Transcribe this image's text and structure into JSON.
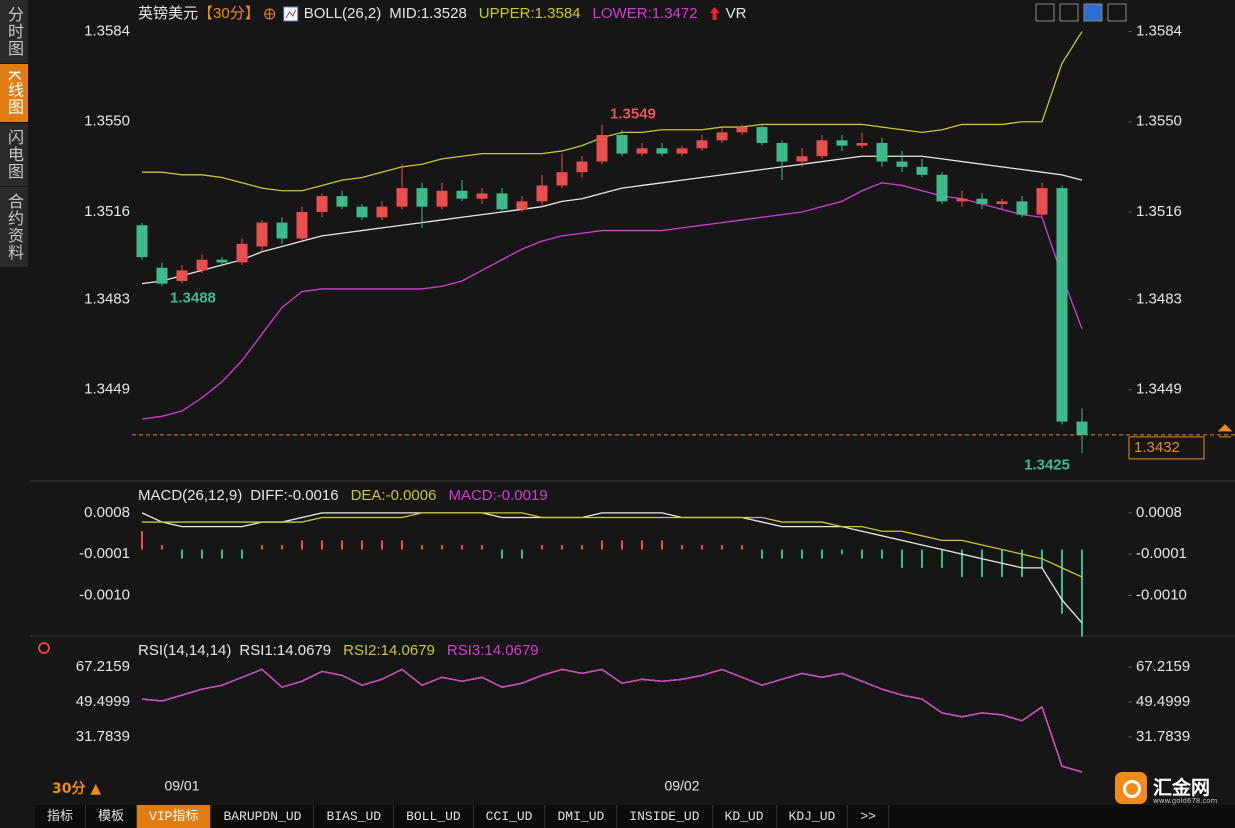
{
  "chart_data": [
    {
      "type": "candlestick",
      "title": "英镑美元",
      "period": "【30分】",
      "indicator": "BOLL(26,2)",
      "extra_indicator": "VR",
      "categories": [
        null,
        null,
        "09/01",
        null,
        null,
        null,
        null,
        null,
        null,
        null,
        null,
        null,
        null,
        null,
        null,
        null,
        null,
        null,
        null,
        null,
        null,
        null,
        null,
        null,
        null,
        null,
        null,
        "09/02",
        null,
        null,
        null,
        null,
        null,
        null,
        null,
        null,
        null,
        null,
        null,
        null,
        null,
        null,
        null,
        null,
        null,
        null,
        null,
        null
      ],
      "open": [
        1.3511,
        1.3495,
        1.349,
        1.3494,
        1.3498,
        1.3497,
        1.3503,
        1.3512,
        1.3506,
        1.3516,
        1.3522,
        1.3518,
        1.3514,
        1.3518,
        1.3525,
        1.3518,
        1.3524,
        1.3521,
        1.3523,
        1.3517,
        1.352,
        1.3526,
        1.3531,
        1.3535,
        1.3545,
        1.3538,
        1.354,
        1.3538,
        1.354,
        1.3543,
        1.3546,
        1.3548,
        1.3542,
        1.3535,
        1.3537,
        1.3543,
        1.3541,
        1.3542,
        1.3535,
        1.3533,
        1.353,
        1.352,
        1.3521,
        1.3519,
        1.352,
        1.3515,
        1.3525,
        1.3437
      ],
      "high": [
        1.3512,
        1.3497,
        1.3496,
        1.35,
        1.3499,
        1.3506,
        1.3513,
        1.3514,
        1.3518,
        1.3523,
        1.3524,
        1.3519,
        1.352,
        1.3534,
        1.3527,
        1.3527,
        1.3528,
        1.3525,
        1.3525,
        1.3522,
        1.353,
        1.3538,
        1.3537,
        1.3549,
        1.3547,
        1.3542,
        1.3542,
        1.3541,
        1.3545,
        1.3548,
        1.3549,
        1.3549,
        1.3543,
        1.354,
        1.3545,
        1.3545,
        1.3546,
        1.3544,
        1.3539,
        1.3536,
        1.3531,
        1.3524,
        1.3523,
        1.3521,
        1.3522,
        1.3527,
        1.3526,
        1.3442
      ],
      "low": [
        1.3498,
        1.3488,
        1.3489,
        1.3493,
        1.3496,
        1.3496,
        1.3501,
        1.3504,
        1.3505,
        1.3514,
        1.3517,
        1.3513,
        1.3513,
        1.3517,
        1.351,
        1.3517,
        1.352,
        1.3519,
        1.3516,
        1.3516,
        1.3518,
        1.3525,
        1.3529,
        1.3534,
        1.3537,
        1.3537,
        1.3537,
        1.3537,
        1.3539,
        1.3542,
        1.3545,
        1.3541,
        1.3528,
        1.3533,
        1.3536,
        1.3539,
        1.354,
        1.3533,
        1.3531,
        1.3529,
        1.3519,
        1.3518,
        1.3517,
        1.3517,
        1.3514,
        1.3514,
        1.3436,
        1.3425
      ],
      "close": [
        1.3499,
        1.3489,
        1.3494,
        1.3498,
        1.3497,
        1.3504,
        1.3512,
        1.3506,
        1.3516,
        1.3522,
        1.3518,
        1.3514,
        1.3518,
        1.3525,
        1.3518,
        1.3524,
        1.3521,
        1.3523,
        1.3517,
        1.352,
        1.3526,
        1.3531,
        1.3535,
        1.3545,
        1.3538,
        1.354,
        1.3538,
        1.354,
        1.3543,
        1.3546,
        1.3548,
        1.3542,
        1.3535,
        1.3537,
        1.3543,
        1.3541,
        1.3542,
        1.3535,
        1.3533,
        1.353,
        1.352,
        1.3521,
        1.3519,
        1.352,
        1.3515,
        1.3525,
        1.3437,
        1.3432
      ],
      "up_color": "#ea4d4d",
      "down_color": "#3dbb8c",
      "series": [
        {
          "name": "MID:1.3528",
          "color": "#e8e8e8",
          "values": [
            1.3489,
            1.349,
            1.3492,
            1.3494,
            1.3496,
            1.3498,
            1.3501,
            1.3503,
            1.3505,
            1.3507,
            1.3508,
            1.3509,
            1.351,
            1.3511,
            1.3512,
            1.3513,
            1.3514,
            1.3515,
            1.3516,
            1.3517,
            1.3518,
            1.352,
            1.3521,
            1.3523,
            1.3525,
            1.3526,
            1.3527,
            1.3528,
            1.3529,
            1.353,
            1.3531,
            1.3532,
            1.3533,
            1.3534,
            1.3535,
            1.3536,
            1.3537,
            1.3537,
            1.3537,
            1.3537,
            1.3536,
            1.3535,
            1.3534,
            1.3533,
            1.3532,
            1.3531,
            1.353,
            1.3528
          ]
        },
        {
          "name": "UPPER:1.3584",
          "color": "#c8c832",
          "values": [
            1.3531,
            1.3531,
            1.353,
            1.353,
            1.3529,
            1.3527,
            1.3525,
            1.3524,
            1.3524,
            1.3526,
            1.3528,
            1.3529,
            1.3531,
            1.3533,
            1.3534,
            1.3536,
            1.3537,
            1.3538,
            1.3538,
            1.3538,
            1.3538,
            1.3539,
            1.3541,
            1.3544,
            1.3546,
            1.3546,
            1.3547,
            1.3547,
            1.3547,
            1.3548,
            1.3548,
            1.3549,
            1.3549,
            1.3549,
            1.3549,
            1.3549,
            1.3549,
            1.3548,
            1.3547,
            1.3546,
            1.3547,
            1.3549,
            1.3549,
            1.3549,
            1.355,
            1.355,
            1.3572,
            1.3584
          ]
        },
        {
          "name": "LOWER:1.3472",
          "color": "#d43cd4",
          "values": [
            1.3438,
            1.3439,
            1.3441,
            1.3446,
            1.3452,
            1.346,
            1.347,
            1.348,
            1.3486,
            1.3487,
            1.3487,
            1.3487,
            1.3487,
            1.3487,
            1.3487,
            1.3488,
            1.349,
            1.3494,
            1.3498,
            1.3502,
            1.3505,
            1.3507,
            1.3508,
            1.3509,
            1.3509,
            1.3509,
            1.3509,
            1.351,
            1.3511,
            1.3512,
            1.3513,
            1.3514,
            1.3515,
            1.3516,
            1.3518,
            1.352,
            1.3524,
            1.3527,
            1.3526,
            1.3524,
            1.3522,
            1.3521,
            1.3519,
            1.3517,
            1.3515,
            1.3514,
            1.3492,
            1.3472
          ]
        }
      ],
      "annotations": [
        {
          "text": "1.3549",
          "index": 23,
          "at": "high",
          "color": "#e05a5a"
        },
        {
          "text": "1.3488",
          "index": 1,
          "at": "low",
          "color": "#3dbb8c"
        },
        {
          "text": "1.3425",
          "index": 47,
          "at": "low",
          "color": "#3dbb8c"
        }
      ],
      "current_price": 1.3432,
      "ylim": [
        1.3415,
        1.3594
      ],
      "yticks": [
        1.3584,
        {
          "value": 1.355,
          "label": "1.3550"
        },
        1.3516,
        1.3483,
        1.3449
      ]
    },
    {
      "type": "macd",
      "title": "MACD(26,12,9)",
      "series": [
        {
          "name": "DIFF:-0.0016",
          "color": "#e8e8e8",
          "values": [
            0.0008,
            0.0006,
            0.0005,
            0.0005,
            0.0005,
            0.0005,
            0.0006,
            0.0006,
            0.0007,
            0.0008,
            0.0008,
            0.0008,
            0.0008,
            0.0008,
            0.0008,
            0.0008,
            0.0008,
            0.0008,
            0.0007,
            0.0007,
            0.0007,
            0.0007,
            0.0007,
            0.0008,
            0.0008,
            0.0008,
            0.0008,
            0.0007,
            0.0007,
            0.0007,
            0.0007,
            0.0006,
            0.0005,
            0.0005,
            0.0005,
            0.0005,
            0.0004,
            0.0003,
            0.0002,
            0.0001,
            0.0,
            -0.0001,
            -0.0002,
            -0.0003,
            -0.0004,
            -0.0004,
            -0.0011,
            -0.0016
          ]
        },
        {
          "name": "DEA:-0.0006",
          "color": "#c8c832",
          "values": [
            0.0006,
            0.0006,
            0.0006,
            0.0006,
            0.0006,
            0.0006,
            0.0006,
            0.0006,
            0.0006,
            0.0007,
            0.0007,
            0.0007,
            0.0007,
            0.0007,
            0.0008,
            0.0008,
            0.0008,
            0.0008,
            0.0008,
            0.0008,
            0.0007,
            0.0007,
            0.0007,
            0.0007,
            0.0007,
            0.0007,
            0.0007,
            0.0007,
            0.0007,
            0.0007,
            0.0007,
            0.0007,
            0.0006,
            0.0006,
            0.0006,
            0.0005,
            0.0005,
            0.0004,
            0.0004,
            0.0003,
            0.0002,
            0.0002,
            0.0001,
            0.0,
            -0.0001,
            -0.0002,
            -0.0004,
            -0.0006
          ]
        },
        {
          "name": "MACD:-0.0019",
          "color": "#d43cd4",
          "histogram": true,
          "values": [
            0.0004,
            0.0001,
            -0.0002,
            -0.0002,
            -0.0002,
            -0.0002,
            0.0001,
            0.0001,
            0.0002,
            0.0002,
            0.0002,
            0.0002,
            0.0002,
            0.0002,
            0.0001,
            0.0001,
            0.0001,
            0.0001,
            -0.0002,
            -0.0002,
            0.0001,
            0.0001,
            0.0001,
            0.0002,
            0.0002,
            0.0002,
            0.0002,
            0.0001,
            0.0001,
            0.0001,
            0.0001,
            -0.0002,
            -0.0002,
            -0.0002,
            -0.0002,
            -0.0001,
            -0.0002,
            -0.0002,
            -0.0004,
            -0.0004,
            -0.0004,
            -0.0006,
            -0.0006,
            -0.0006,
            -0.0006,
            -0.0004,
            -0.0014,
            -0.0019
          ]
        }
      ],
      "up_color": "#ea4d4d",
      "down_color": "#3dbb8c",
      "ylim": [
        -0.0018,
        0.0013
      ],
      "yticks": [
        0.0008,
        -0.0001,
        {
          "value": -0.001,
          "label": "-0.0010"
        }
      ]
    },
    {
      "type": "line",
      "title": "RSI(14,14,14)",
      "series": [
        {
          "name": "RSI1:14.0679",
          "color": "#e8e8e8",
          "values": [
            51,
            50,
            53,
            56,
            58,
            62,
            66,
            57,
            60,
            65,
            63,
            58,
            61,
            66,
            58,
            62,
            60,
            62,
            57,
            59,
            63,
            66,
            64,
            66,
            59,
            61,
            60,
            61,
            63,
            66,
            62,
            58,
            61,
            64,
            62,
            64,
            60,
            56,
            53,
            51,
            44,
            42,
            44,
            43,
            40,
            47,
            17,
            14.0679
          ]
        },
        {
          "name": "RSI2:14.0679",
          "color": "#c8c832",
          "values": [
            51,
            50,
            53,
            56,
            58,
            62,
            66,
            57,
            60,
            65,
            63,
            58,
            61,
            66,
            58,
            62,
            60,
            62,
            57,
            59,
            63,
            66,
            64,
            66,
            59,
            61,
            60,
            61,
            63,
            66,
            62,
            58,
            61,
            64,
            62,
            64,
            60,
            56,
            53,
            51,
            44,
            42,
            44,
            43,
            40,
            47,
            17,
            14.0679
          ]
        },
        {
          "name": "RSI3:14.0679",
          "color": "#d43cd4",
          "values": [
            51,
            50,
            53,
            56,
            58,
            62,
            66,
            57,
            60,
            65,
            63,
            58,
            61,
            66,
            58,
            62,
            60,
            62,
            57,
            59,
            63,
            66,
            64,
            66,
            59,
            61,
            60,
            61,
            63,
            66,
            62,
            58,
            61,
            64,
            62,
            64,
            60,
            56,
            53,
            51,
            44,
            42,
            44,
            43,
            40,
            47,
            17,
            14.0679
          ]
        }
      ],
      "ylim": [
        10.0,
        80.9
      ],
      "yticks": [
        67.2159,
        49.4999,
        31.7839
      ]
    }
  ],
  "ui": {
    "side_tabs": [
      "分时图",
      "K线图",
      "闪电图",
      "合约资料"
    ],
    "active_side_tab": 1,
    "period_button": "30分 ▲",
    "bottom_tabs": [
      "指标",
      "模板",
      "VIP指标",
      "BARUPDN_UD",
      "BIAS_UD",
      "BOLL_UD",
      "CCI_UD",
      "DMI_UD",
      "INSIDE_UD",
      "KD_UD",
      "KDJ_UD",
      ">>"
    ],
    "active_bottom_tab": 2,
    "logo": "汇金网",
    "logo_url": "www.gold678.com"
  }
}
